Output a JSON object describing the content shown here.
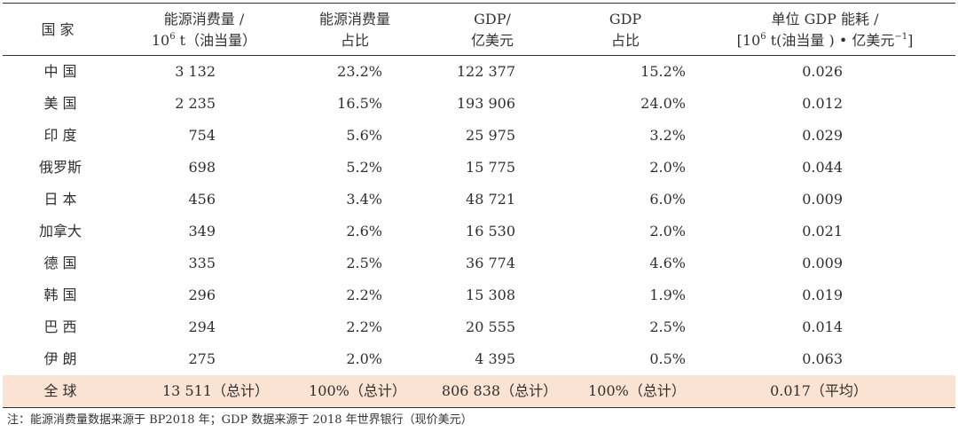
{
  "headers": {
    "country": "国 家",
    "energy_l1": "能源消费量 /",
    "energy_l2_base": "10",
    "energy_l2_sup": "6",
    "energy_l2_rest": " t（油当量）",
    "eshare_l1": "能源消费量",
    "eshare_l2": "占比",
    "gdp_l1": "GDP/",
    "gdp_l2": "亿美元",
    "gshare_l1": "GDP",
    "gshare_l2": "占比",
    "intensity_l1": "单位 GDP 能耗 /",
    "intensity_l2_a": "[10",
    "intensity_l2_sup": "6",
    "intensity_l2_b": " t(油当量 ) • 亿美元",
    "intensity_l2_sup2": "−1",
    "intensity_l2_c": "]"
  },
  "rows": [
    {
      "country": "中 国",
      "energy": "3 132",
      "eshare": "23.2%",
      "gdp": "122 377",
      "gshare": "15.2%",
      "intensity": "0.026"
    },
    {
      "country": "美 国",
      "energy": "2 235",
      "eshare": "16.5%",
      "gdp": "193 906",
      "gshare": "24.0%",
      "intensity": "0.012"
    },
    {
      "country": "印 度",
      "energy": "754",
      "eshare": "5.6%",
      "gdp": "25 975",
      "gshare": "3.2%",
      "intensity": "0.029"
    },
    {
      "country": "俄罗斯",
      "energy": "698",
      "eshare": "5.2%",
      "gdp": "15 775",
      "gshare": "2.0%",
      "intensity": "0.044"
    },
    {
      "country": "日 本",
      "energy": "456",
      "eshare": "3.4%",
      "gdp": "48 721",
      "gshare": "6.0%",
      "intensity": "0.009"
    },
    {
      "country": "加拿大",
      "energy": "349",
      "eshare": "2.6%",
      "gdp": "16 530",
      "gshare": "2.0%",
      "intensity": "0.021"
    },
    {
      "country": "德 国",
      "energy": "335",
      "eshare": "2.5%",
      "gdp": "36 774",
      "gshare": "4.6%",
      "intensity": "0.009"
    },
    {
      "country": "韩 国",
      "energy": "296",
      "eshare": "2.2%",
      "gdp": "15 308",
      "gshare": "1.9%",
      "intensity": "0.019"
    },
    {
      "country": "巴 西",
      "energy": "294",
      "eshare": "2.2%",
      "gdp": "20 555",
      "gshare": "2.5%",
      "intensity": "0.014"
    },
    {
      "country": "伊 朗",
      "energy": "275",
      "eshare": "2.0%",
      "gdp": "4 395",
      "gshare": "0.5%",
      "intensity": "0.063"
    }
  ],
  "total": {
    "country": "全 球",
    "energy": "13 511（总计）",
    "eshare": "100%（总计）",
    "gdp": "806 838（总计）",
    "gshare": "100%（总计）",
    "intensity": "0.017（平均）",
    "highlight_color": "#fbe3d3"
  },
  "footnote": "注：能源消费量数据来源于 BP2018 年；GDP 数据来源于 2018 年世界银行（现价美元）"
}
